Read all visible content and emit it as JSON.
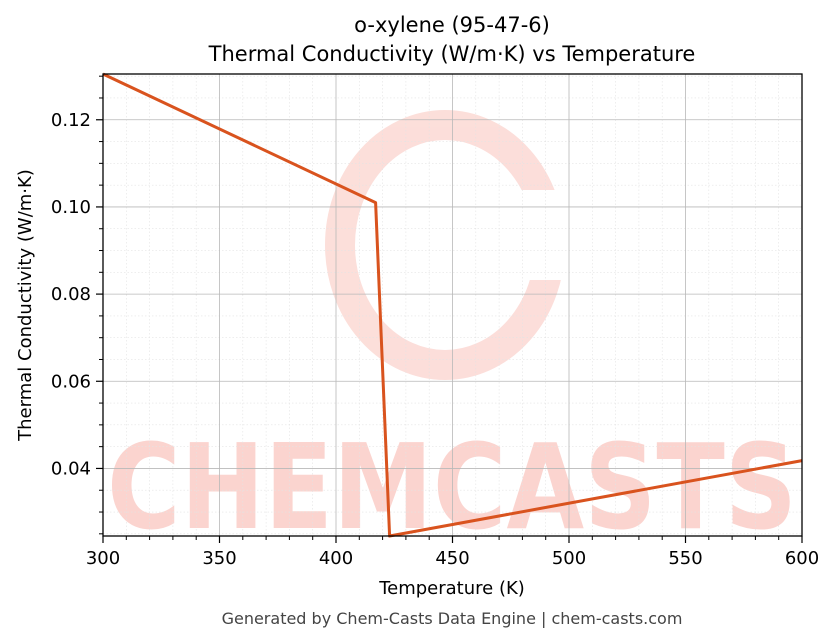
{
  "chart_data": {
    "type": "line",
    "title": "o-xylene (95-47-6)",
    "subtitle": "Thermal Conductivity (W/m·K) vs Temperature",
    "xlabel": "Temperature (K)",
    "ylabel": "Thermal Conductivity (W/m·K)",
    "xlim": [
      300,
      600
    ],
    "ylim": [
      0.0245,
      0.1305
    ],
    "xticks": [
      300,
      350,
      400,
      450,
      500,
      550,
      600
    ],
    "xtick_labels": [
      "300",
      "350",
      "400",
      "450",
      "500",
      "550",
      "600"
    ],
    "yticks": [
      0.04,
      0.06,
      0.08,
      0.1,
      0.12
    ],
    "ytick_labels": [
      "0.04",
      "0.06",
      "0.08",
      "0.10",
      "0.12"
    ],
    "grid": true,
    "series": [
      {
        "color": "#d9531e",
        "x": [
          300,
          417,
          423,
          600
        ],
        "y": [
          0.1305,
          0.101,
          0.0245,
          0.0418
        ]
      }
    ]
  },
  "watermark": {
    "text": "CHEMCASTS",
    "color": "#fbd4cf"
  },
  "footer": {
    "text": "Generated by Chem-Casts Data Engine | chem-casts.com"
  }
}
